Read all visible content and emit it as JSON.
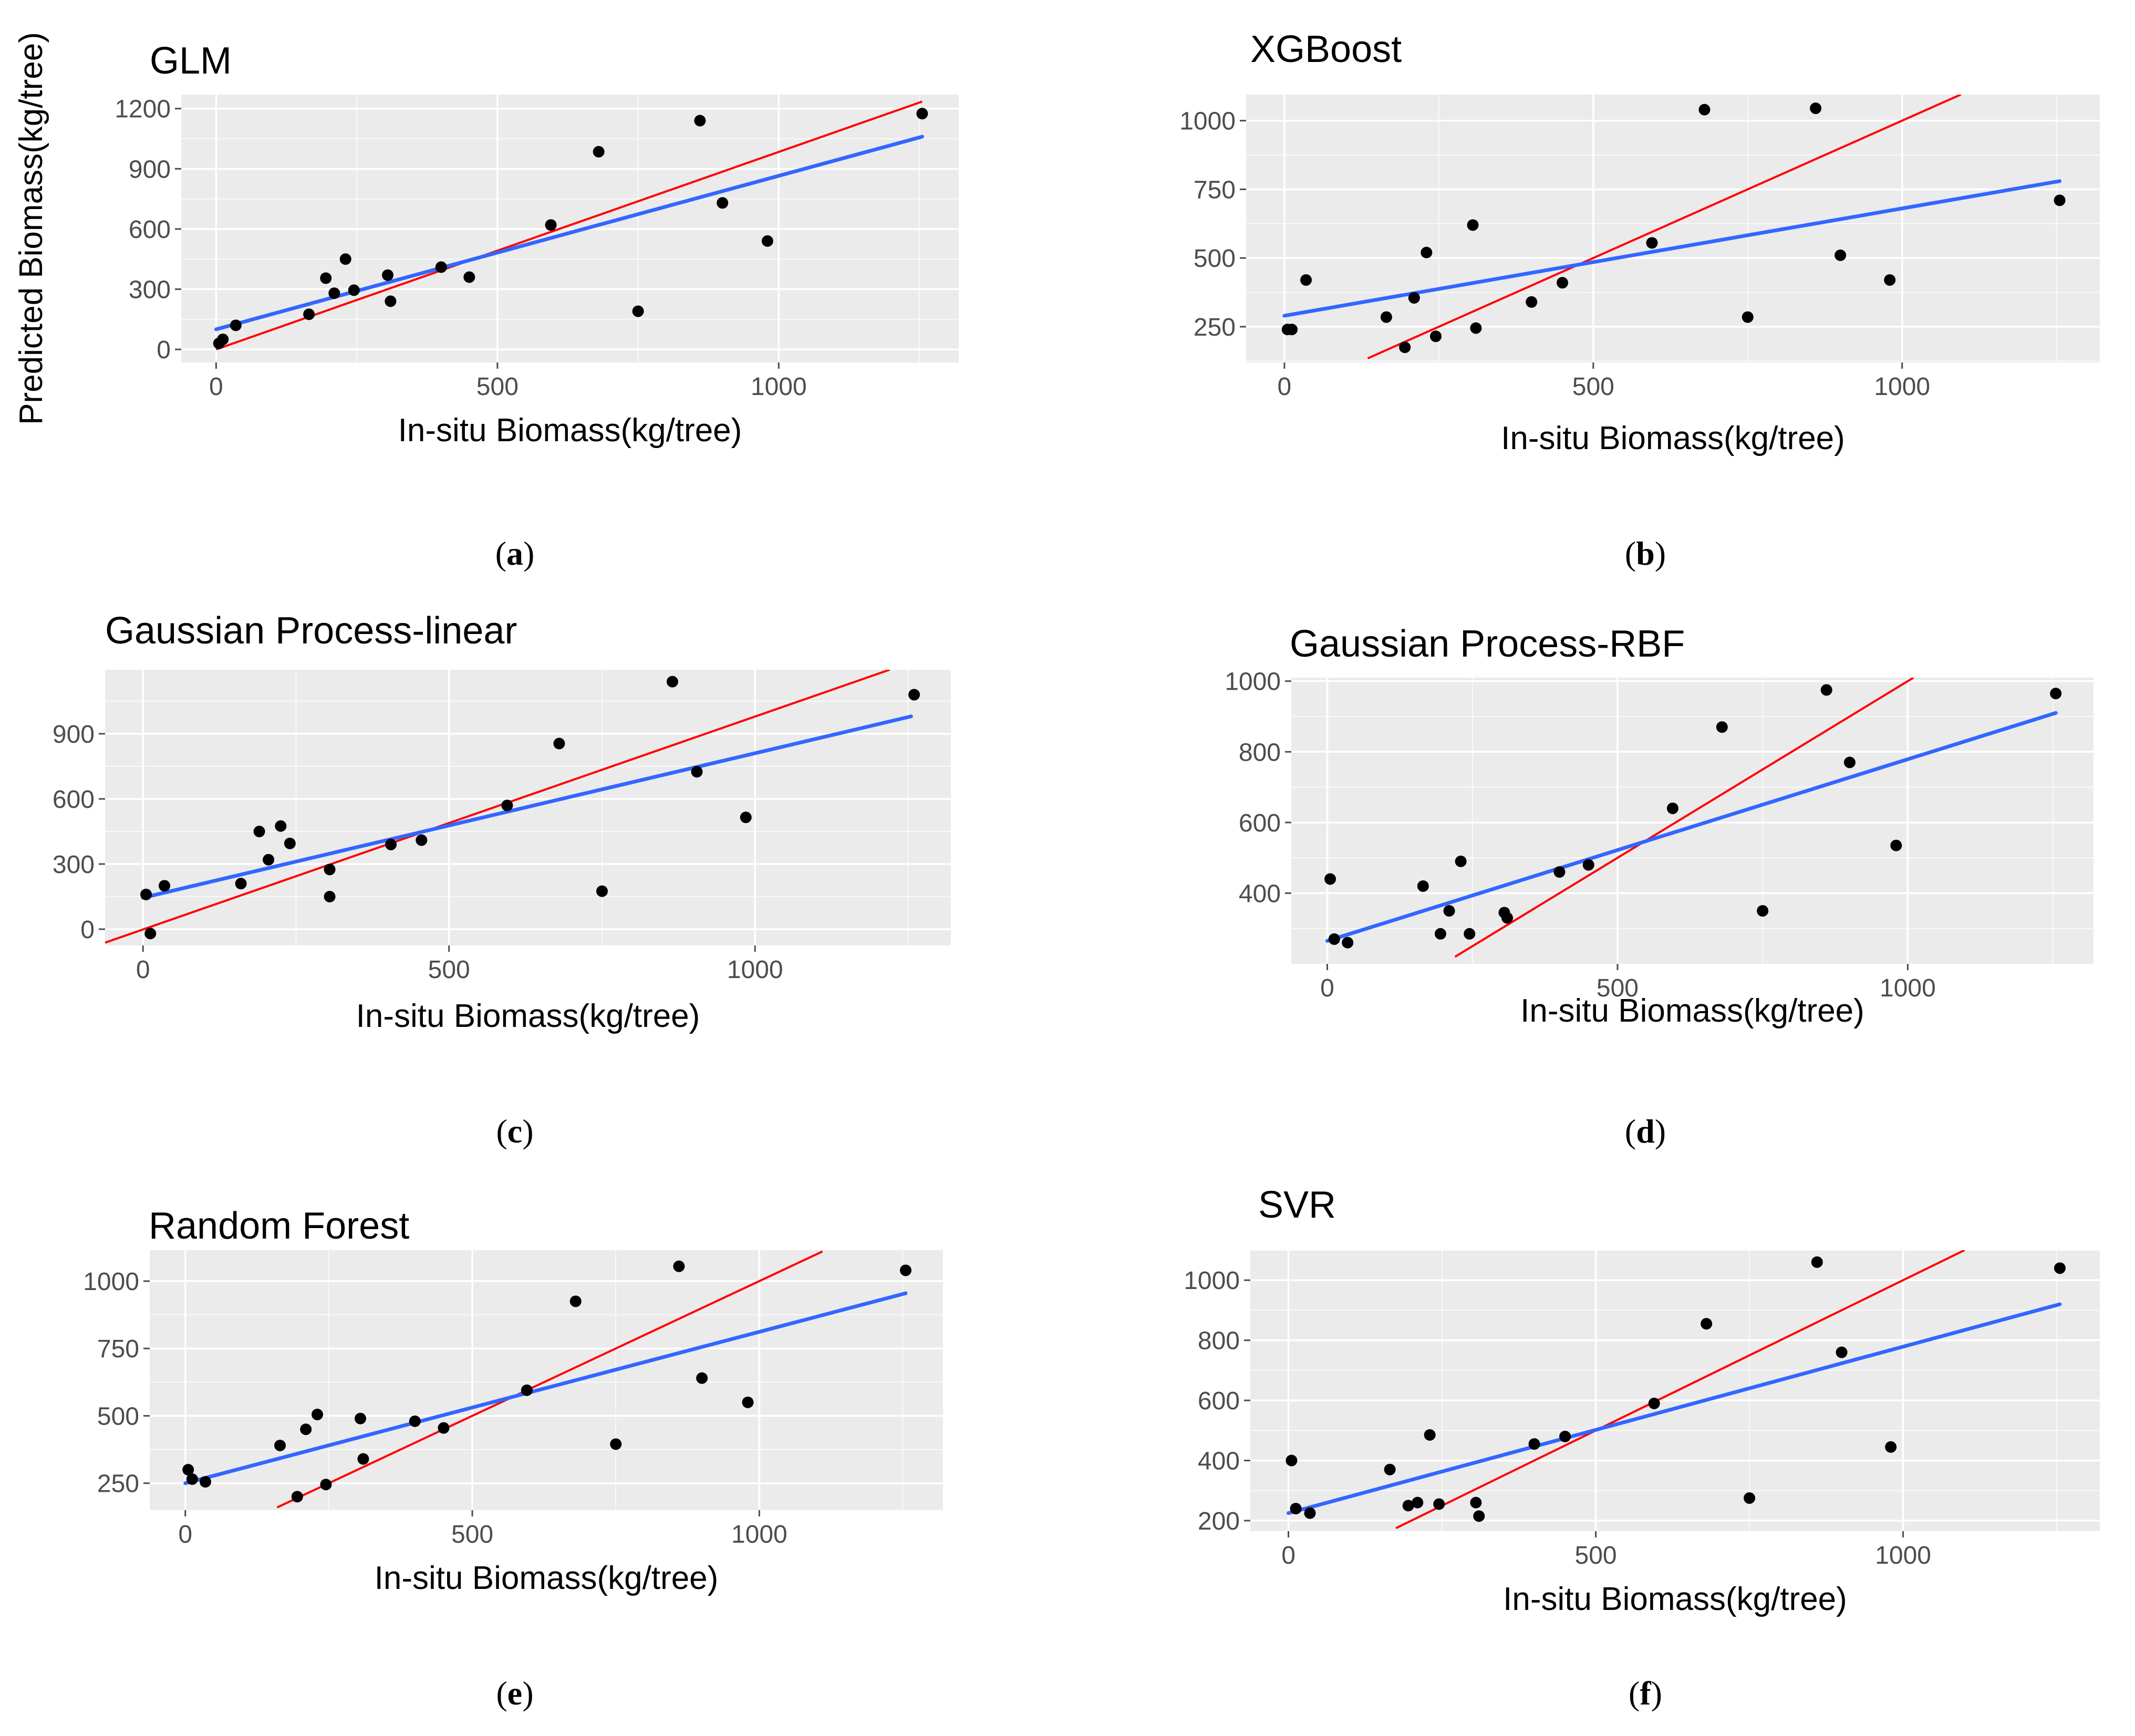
{
  "figure": {
    "captions": [
      "a",
      "b",
      "c",
      "d",
      "e",
      "f"
    ]
  },
  "colors": {
    "ref_line": "#ff0000",
    "fit_line": "#3366ff",
    "point": "#000000",
    "panel": "#ebebeb"
  },
  "chart_data": [
    {
      "type": "scatter",
      "title": "GLM",
      "xlabel": "In-situ Biomass(kg/tree)",
      "ylabel": "Predicted Biomass(kg/tree)",
      "xlim": [
        -62,
        1320
      ],
      "ylim": [
        -65,
        1270
      ],
      "xticks": [
        0,
        500,
        1000
      ],
      "yticks": [
        0,
        300,
        600,
        900,
        1200
      ],
      "x": [
        5,
        12,
        35,
        165,
        195,
        210,
        230,
        245,
        305,
        310,
        400,
        450,
        595,
        680,
        750,
        860,
        900,
        980,
        1255
      ],
      "y": [
        30,
        50,
        120,
        175,
        355,
        280,
        450,
        295,
        370,
        240,
        410,
        360,
        620,
        985,
        190,
        1140,
        730,
        540,
        1175
      ],
      "ref_line": {
        "x": [
          0,
          1255
        ],
        "y": [
          0,
          1235
        ]
      },
      "fit_line": {
        "x": [
          0,
          1255
        ],
        "y": [
          100,
          1060
        ]
      },
      "grid": true
    },
    {
      "type": "scatter",
      "title": "XGBoost",
      "xlabel": "In-situ Biomass(kg/tree)",
      "ylabel": "",
      "xlim": [
        -62,
        1320
      ],
      "ylim": [
        120,
        1095
      ],
      "xticks": [
        0,
        500,
        1000
      ],
      "yticks": [
        250,
        500,
        750,
        1000
      ],
      "x": [
        5,
        12,
        35,
        165,
        195,
        210,
        230,
        245,
        305,
        310,
        400,
        450,
        595,
        680,
        750,
        860,
        900,
        980,
        1255
      ],
      "y": [
        240,
        240,
        420,
        285,
        175,
        355,
        520,
        215,
        620,
        245,
        340,
        410,
        555,
        1040,
        285,
        1045,
        510,
        420,
        710
      ],
      "ref_line": {
        "x": [
          135,
          1095
        ],
        "y": [
          135,
          1095
        ]
      },
      "fit_line": {
        "x": [
          0,
          1255
        ],
        "y": [
          290,
          780
        ]
      },
      "grid": true
    },
    {
      "type": "scatter",
      "title": "Gaussian Process-linear",
      "xlabel": "In-situ Biomass(kg/tree)",
      "ylabel": "",
      "xlim": [
        -62,
        1320
      ],
      "ylim": [
        -75,
        1195
      ],
      "xticks": [
        0,
        500,
        1000
      ],
      "yticks": [
        0,
        300,
        600,
        900
      ],
      "x": [
        5,
        12,
        35,
        160,
        190,
        205,
        225,
        240,
        305,
        305,
        405,
        455,
        595,
        680,
        750,
        865,
        905,
        985,
        1260
      ],
      "y": [
        160,
        -20,
        200,
        210,
        450,
        320,
        475,
        395,
        275,
        150,
        390,
        410,
        570,
        855,
        175,
        1140,
        725,
        515,
        1080
      ],
      "ref_line": {
        "x": [
          -62,
          1220
        ],
        "y": [
          -62,
          1195
        ]
      },
      "fit_line": {
        "x": [
          0,
          1255
        ],
        "y": [
          145,
          980
        ]
      },
      "grid": true
    },
    {
      "type": "scatter",
      "title": "Gaussian Process-RBF",
      "xlabel": "In-situ Biomass(kg/tree)",
      "ylabel": "",
      "xlim": [
        -62,
        1320
      ],
      "ylim": [
        200,
        1010
      ],
      "xticks": [
        0,
        500,
        1000
      ],
      "yticks": [
        400,
        600,
        800,
        1000
      ],
      "x": [
        5,
        12,
        35,
        165,
        195,
        210,
        230,
        245,
        305,
        310,
        400,
        450,
        595,
        680,
        750,
        860,
        900,
        980,
        1255
      ],
      "y": [
        440,
        270,
        260,
        420,
        285,
        350,
        490,
        285,
        345,
        330,
        460,
        480,
        640,
        870,
        350,
        975,
        770,
        535,
        965
      ],
      "ref_line": {
        "x": [
          220,
          1010
        ],
        "y": [
          220,
          1010
        ]
      },
      "fit_line": {
        "x": [
          0,
          1255
        ],
        "y": [
          265,
          910
        ]
      },
      "grid": true
    },
    {
      "type": "scatter",
      "title": "Random Forest",
      "xlabel": "In-situ Biomass(kg/tree)",
      "ylabel": "",
      "xlim": [
        -62,
        1320
      ],
      "ylim": [
        150,
        1115
      ],
      "xticks": [
        0,
        500,
        1000
      ],
      "yticks": [
        250,
        500,
        750,
        1000
      ],
      "x": [
        5,
        12,
        35,
        165,
        195,
        210,
        230,
        245,
        305,
        310,
        400,
        450,
        595,
        680,
        750,
        860,
        900,
        980,
        1255
      ],
      "y": [
        300,
        265,
        255,
        390,
        200,
        450,
        505,
        245,
        490,
        340,
        480,
        455,
        595,
        925,
        395,
        1055,
        640,
        550,
        1040
      ],
      "ref_line": {
        "x": [
          160,
          1110
        ],
        "y": [
          160,
          1110
        ]
      },
      "fit_line": {
        "x": [
          0,
          1255
        ],
        "y": [
          250,
          955
        ]
      },
      "grid": true
    },
    {
      "type": "scatter",
      "title": "SVR",
      "xlabel": "In-situ Biomass(kg/tree)",
      "ylabel": "",
      "xlim": [
        -62,
        1320
      ],
      "ylim": [
        165,
        1100
      ],
      "xticks": [
        0,
        500,
        1000
      ],
      "yticks": [
        200,
        400,
        600,
        800,
        1000
      ],
      "x": [
        5,
        12,
        35,
        165,
        195,
        210,
        230,
        245,
        305,
        310,
        400,
        450,
        595,
        680,
        750,
        860,
        900,
        980,
        1255
      ],
      "y": [
        400,
        240,
        225,
        370,
        250,
        260,
        485,
        255,
        260,
        215,
        455,
        480,
        590,
        855,
        275,
        1060,
        760,
        445,
        1040
      ],
      "ref_line": {
        "x": [
          175,
          1100
        ],
        "y": [
          175,
          1100
        ]
      },
      "fit_line": {
        "x": [
          0,
          1255
        ],
        "y": [
          225,
          920
        ]
      },
      "grid": true
    }
  ]
}
